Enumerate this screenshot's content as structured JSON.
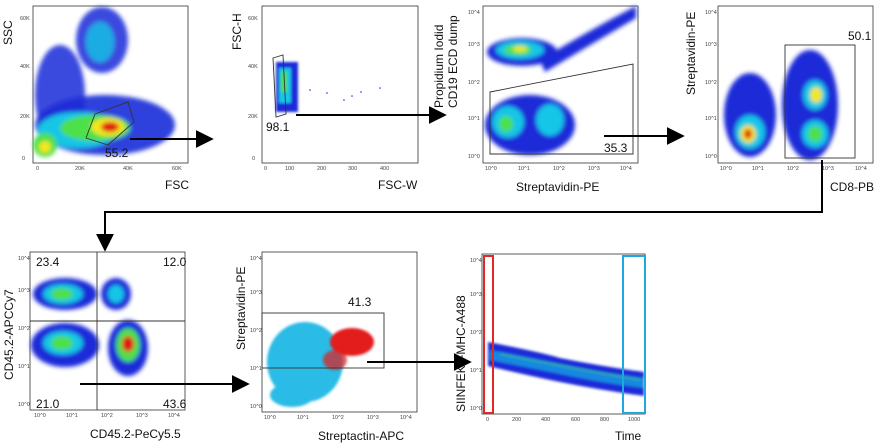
{
  "figure": {
    "panels": [
      {
        "id": "p1",
        "x_label": "FSC",
        "y_label": "SSC",
        "x_ticks": [
          "0",
          "20K",
          "40K",
          "60K"
        ],
        "y_ticks": [
          "0",
          "20K",
          "40K",
          "60K"
        ],
        "gate_value": "55.2"
      },
      {
        "id": "p2",
        "x_label": "FSC-W",
        "y_label": "FSC-H",
        "x_ticks": [
          "0",
          "100",
          "200",
          "300",
          "400"
        ],
        "y_ticks": [
          "0",
          "20K",
          "40K",
          "60K"
        ],
        "gate_value": "98.1"
      },
      {
        "id": "p3",
        "x_label": "Streptavidin-PE",
        "y_label_line1": "Propidium Iodid",
        "y_label_line2": "CD19 ECD dump",
        "x_ticks": [
          "10^0",
          "10^1",
          "10^2",
          "10^3",
          "10^4"
        ],
        "y_ticks": [
          "10^0",
          "10^1",
          "10^2",
          "10^3",
          "10^4"
        ],
        "gate_value": "35.3"
      },
      {
        "id": "p4",
        "x_label": "CD8-PB",
        "y_label": "Streptavidin-PE",
        "x_ticks": [
          "10^0",
          "10^1",
          "10^2",
          "10^3",
          "10^4"
        ],
        "y_ticks": [
          "10^0",
          "10^1",
          "10^2",
          "10^3",
          "10^4"
        ],
        "gate_value": "50.1"
      },
      {
        "id": "p5",
        "x_label": "CD45.2-PeCy5.5",
        "y_label": "CD45.2-APCCy7",
        "x_ticks": [
          "10^0",
          "10^1",
          "10^2",
          "10^3",
          "10^4"
        ],
        "y_ticks": [
          "10^0",
          "10^1",
          "10^2",
          "10^3",
          "10^4"
        ],
        "quadrants": {
          "upper_left": "23.4",
          "upper_right": "12.0",
          "lower_left": "21.0",
          "lower_right": "43.6"
        }
      },
      {
        "id": "p6",
        "x_label": "Streptactin-APC",
        "y_label": "Streptavidin-PE",
        "x_ticks": [
          "10^0",
          "10^1",
          "10^2",
          "10^3",
          "10^4"
        ],
        "y_ticks": [
          "10^0",
          "10^1",
          "10^2",
          "10^3",
          "10^4"
        ],
        "gate_value": "41.3"
      },
      {
        "id": "p7",
        "x_label": "Time",
        "y_label": "SIINFEKL-MHC-A488",
        "x_ticks": [
          "0",
          "200",
          "400",
          "600",
          "800",
          "1000"
        ],
        "y_ticks": [
          "10^0",
          "10^1",
          "10^2",
          "10^3",
          "10^4"
        ]
      }
    ]
  },
  "colors": {
    "density_low": "#1b2bd8",
    "density_mid": "#17c6e6",
    "density_high": "#4ee04a",
    "density_peak": "#f2e81c",
    "density_max": "#e01414",
    "cyan_population": "#2bbbe6",
    "red_population": "#e31d1d",
    "gate_red": "#e32626",
    "gate_blue": "#1fa8e0",
    "arrow": "#000000"
  }
}
